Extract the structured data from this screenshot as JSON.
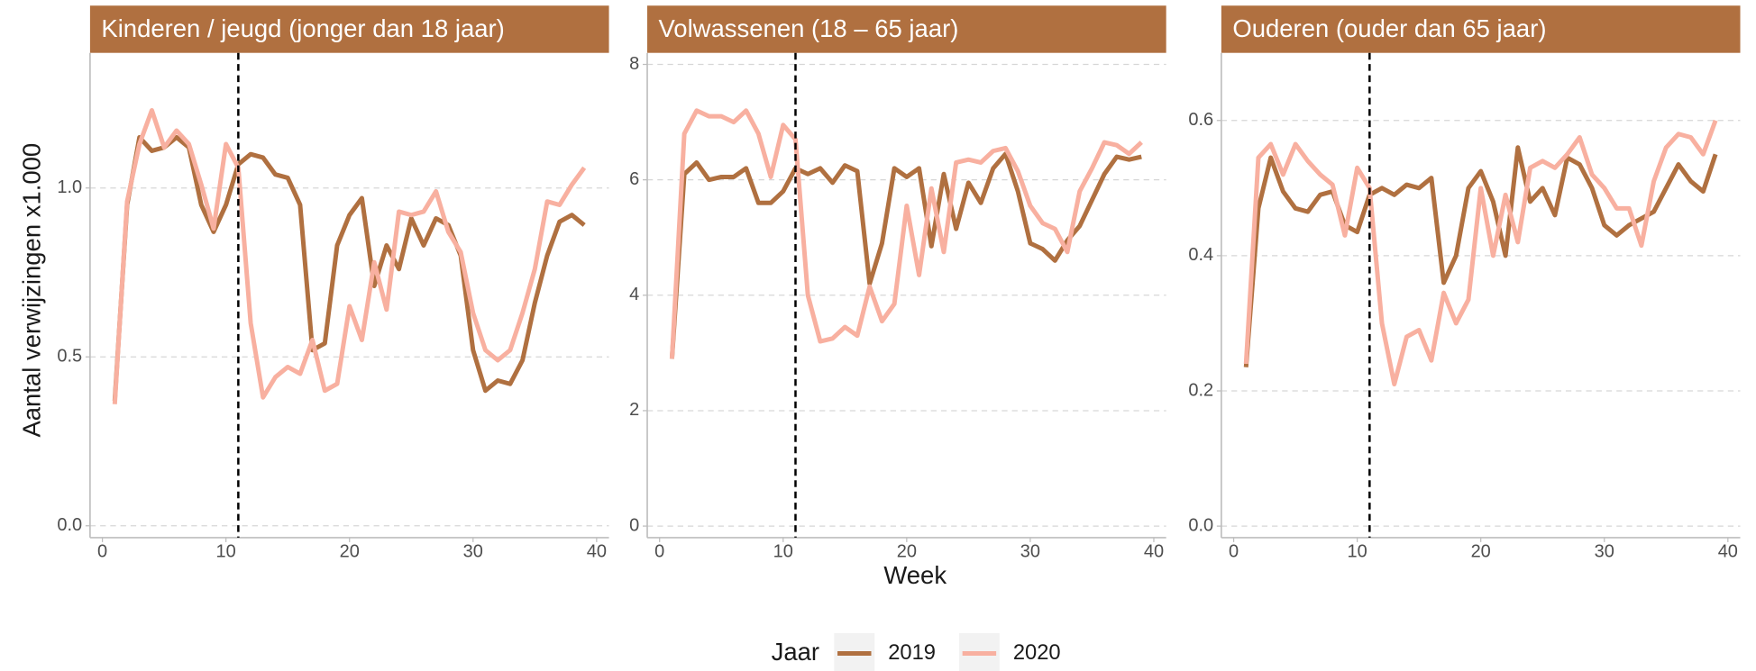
{
  "ylabel": "Aantal verwijzingen x1.000",
  "xlabel": "Week",
  "legend_title": "Jaar",
  "legend": "bottom",
  "chart_data": [
    {
      "type": "line",
      "title": "Kinderen / jeugd (jonger dan 18 jaar)",
      "title_background": "#b07040",
      "grid": true,
      "vline": 11,
      "x": [
        1,
        2,
        3,
        4,
        5,
        6,
        7,
        8,
        9,
        10,
        11,
        12,
        13,
        14,
        15,
        16,
        17,
        18,
        19,
        20,
        21,
        22,
        23,
        24,
        25,
        26,
        27,
        28,
        29,
        30,
        31,
        32,
        33,
        34,
        35,
        36,
        37,
        38,
        39
      ],
      "series": [
        {
          "name": "2019",
          "color": "#b07040",
          "values": [
            0.37,
            0.95,
            1.15,
            1.11,
            1.12,
            1.15,
            1.12,
            0.95,
            0.87,
            0.95,
            1.07,
            1.1,
            1.09,
            1.04,
            1.03,
            0.95,
            0.52,
            0.54,
            0.83,
            0.92,
            0.97,
            0.71,
            0.83,
            0.76,
            0.91,
            0.83,
            0.91,
            0.89,
            0.8,
            0.52,
            0.4,
            0.43,
            0.42,
            0.49,
            0.66,
            0.8,
            0.9,
            0.92,
            0.89
          ]
        },
        {
          "name": "2020",
          "color": "#f8b0a0",
          "values": [
            0.36,
            0.96,
            1.13,
            1.23,
            1.12,
            1.17,
            1.13,
            1.01,
            0.88,
            1.13,
            1.06,
            0.6,
            0.38,
            0.44,
            0.47,
            0.45,
            0.55,
            0.4,
            0.42,
            0.65,
            0.55,
            0.78,
            0.64,
            0.93,
            0.92,
            0.93,
            0.99,
            0.87,
            0.81,
            0.63,
            0.52,
            0.49,
            0.52,
            0.63,
            0.76,
            0.96,
            0.95,
            1.01,
            1.06
          ]
        }
      ],
      "xlim": [
        -1,
        41
      ],
      "ylim": [
        -0.035,
        1.4
      ],
      "xticks": [
        0,
        10,
        20,
        30,
        40
      ],
      "yticks": [
        {
          "value": 0,
          "label": "0.0"
        },
        {
          "value": 0.5,
          "label": "0.5"
        },
        {
          "value": 1,
          "label": "1.0"
        }
      ]
    },
    {
      "type": "line",
      "title": "Volwassenen (18 – 65 jaar)",
      "title_background": "#b07040",
      "grid": true,
      "vline": 11,
      "x": [
        1,
        2,
        3,
        4,
        5,
        6,
        7,
        8,
        9,
        10,
        11,
        12,
        13,
        14,
        15,
        16,
        17,
        18,
        19,
        20,
        21,
        22,
        23,
        24,
        25,
        26,
        27,
        28,
        29,
        30,
        31,
        32,
        33,
        34,
        35,
        36,
        37,
        38,
        39
      ],
      "series": [
        {
          "name": "2019",
          "color": "#b07040",
          "values": [
            2.9,
            6.1,
            6.3,
            6.0,
            6.05,
            6.05,
            6.2,
            5.6,
            5.6,
            5.8,
            6.2,
            6.1,
            6.2,
            5.95,
            6.25,
            6.15,
            4.2,
            4.9,
            6.2,
            6.05,
            6.2,
            4.85,
            6.1,
            5.15,
            5.95,
            5.6,
            6.2,
            6.45,
            5.8,
            4.9,
            4.8,
            4.6,
            4.95,
            5.2,
            5.65,
            6.1,
            6.4,
            6.35,
            6.4
          ]
        },
        {
          "name": "2020",
          "color": "#f8b0a0",
          "values": [
            2.9,
            6.8,
            7.2,
            7.1,
            7.1,
            7.0,
            7.2,
            6.8,
            6.05,
            6.95,
            6.7,
            4.0,
            3.2,
            3.25,
            3.45,
            3.3,
            4.15,
            3.55,
            3.85,
            5.55,
            4.35,
            5.85,
            4.75,
            6.3,
            6.35,
            6.3,
            6.5,
            6.55,
            6.15,
            5.55,
            5.25,
            5.15,
            4.75,
            5.8,
            6.2,
            6.65,
            6.6,
            6.45,
            6.65
          ]
        }
      ],
      "xlim": [
        -1,
        41
      ],
      "ylim": [
        -0.2,
        8.2
      ],
      "xticks": [
        0,
        10,
        20,
        30,
        40
      ],
      "yticks": [
        0,
        2,
        4,
        6,
        8
      ]
    },
    {
      "type": "line",
      "title": "Ouderen (ouder dan 65 jaar)",
      "title_background": "#b07040",
      "grid": true,
      "vline": 11,
      "x": [
        1,
        2,
        3,
        4,
        5,
        6,
        7,
        8,
        9,
        10,
        11,
        12,
        13,
        14,
        15,
        16,
        17,
        18,
        19,
        20,
        21,
        22,
        23,
        24,
        25,
        26,
        27,
        28,
        29,
        30,
        31,
        32,
        33,
        34,
        35,
        36,
        37,
        38,
        39
      ],
      "series": [
        {
          "name": "2019",
          "color": "#b07040",
          "values": [
            0.235,
            0.47,
            0.545,
            0.495,
            0.47,
            0.465,
            0.49,
            0.495,
            0.445,
            0.435,
            0.49,
            0.5,
            0.49,
            0.505,
            0.5,
            0.515,
            0.36,
            0.4,
            0.5,
            0.525,
            0.48,
            0.4,
            0.56,
            0.48,
            0.5,
            0.46,
            0.545,
            0.535,
            0.5,
            0.445,
            0.43,
            0.445,
            0.455,
            0.465,
            0.5,
            0.535,
            0.51,
            0.495,
            0.55
          ]
        },
        {
          "name": "2020",
          "color": "#f8b0a0",
          "values": [
            0.24,
            0.545,
            0.565,
            0.52,
            0.565,
            0.54,
            0.52,
            0.505,
            0.43,
            0.53,
            0.5,
            0.3,
            0.21,
            0.28,
            0.29,
            0.245,
            0.345,
            0.3,
            0.335,
            0.5,
            0.4,
            0.49,
            0.42,
            0.53,
            0.54,
            0.53,
            0.55,
            0.575,
            0.52,
            0.5,
            0.47,
            0.47,
            0.415,
            0.51,
            0.56,
            0.58,
            0.575,
            0.55,
            0.6
          ]
        }
      ],
      "xlim": [
        -1,
        41
      ],
      "ylim": [
        -0.017,
        0.7
      ],
      "xticks": [
        0,
        10,
        20,
        30,
        40
      ],
      "yticks": [
        {
          "value": 0,
          "label": "0.0"
        },
        {
          "value": 0.2,
          "label": "0.2"
        },
        {
          "value": 0.4,
          "label": "0.4"
        },
        {
          "value": 0.6,
          "label": "0.6"
        }
      ]
    }
  ]
}
